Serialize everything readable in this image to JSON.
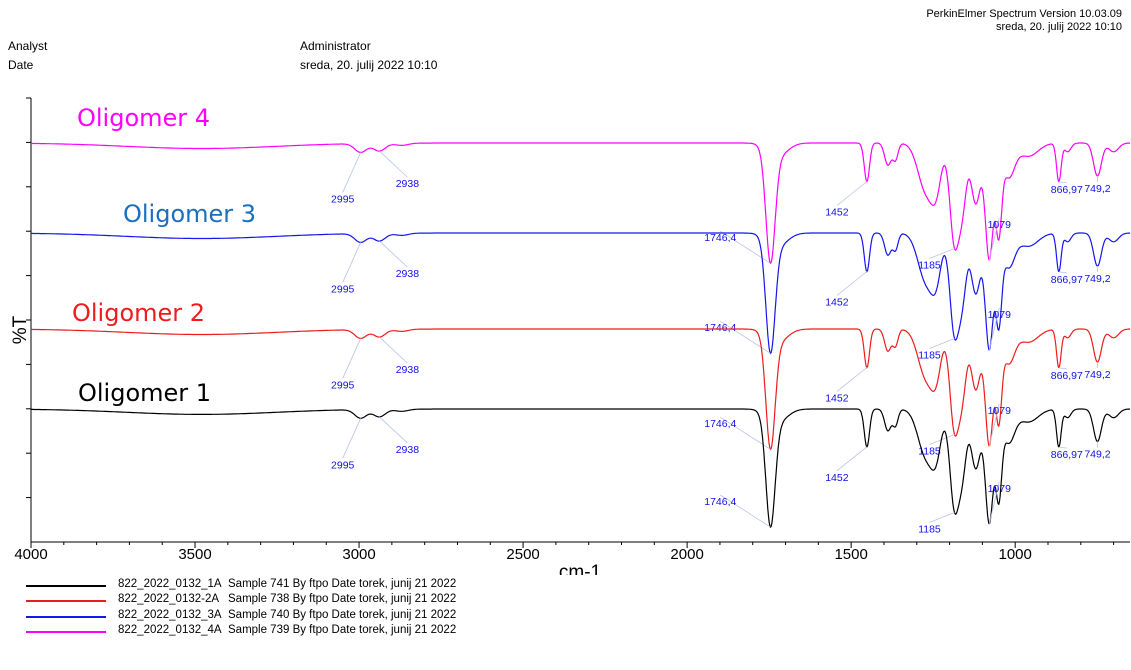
{
  "header": {
    "analyst_label": "Analyst",
    "analyst_value": "Administrator",
    "date_label": "Date",
    "date_value": "sreda, 20. julij 2022 10:10",
    "software": "PerkinElmer Spectrum Version 10.03.09",
    "software_date": "sreda, 20. julij 2022 10:10"
  },
  "chart_data": {
    "type": "line",
    "xlabel": "cm-1",
    "ylabel": "%T",
    "xlim": [
      4000,
      650
    ],
    "x_reversed": true,
    "x_ticks": [
      4000,
      3500,
      3000,
      2500,
      2000,
      1500,
      1000
    ],
    "grid": false,
    "series": [
      {
        "name": "Oligomer 4",
        "color": "#ff00ff",
        "label_color": "#ff00ff",
        "peaks": [
          {
            "x": 2995,
            "label": "2995"
          },
          {
            "x": 2938,
            "label": "2938"
          },
          {
            "x": 1746.4,
            "label": "1746,4"
          },
          {
            "x": 1452,
            "label": "1452"
          },
          {
            "x": 1185,
            "label": "1185"
          },
          {
            "x": 1079,
            "label": "1079"
          },
          {
            "x": 866.97,
            "label": "866,97"
          },
          {
            "x": 749.2,
            "label": "749,2"
          }
        ]
      },
      {
        "name": "Oligomer 3",
        "color": "#1515ee",
        "label_color": "#1a6fbf",
        "peaks": [
          {
            "x": 2995,
            "label": "2995"
          },
          {
            "x": 2938,
            "label": "2938"
          },
          {
            "x": 1746.4,
            "label": "1746,4"
          },
          {
            "x": 1452,
            "label": "1452"
          },
          {
            "x": 1185,
            "label": "1185"
          },
          {
            "x": 1079,
            "label": "1079"
          },
          {
            "x": 866.97,
            "label": "866,97"
          },
          {
            "x": 749.2,
            "label": "749,2"
          }
        ]
      },
      {
        "name": "Oligomer 2",
        "color": "#ee1c1c",
        "label_color": "#ee1c1c",
        "peaks": [
          {
            "x": 2995,
            "label": "2995"
          },
          {
            "x": 2938,
            "label": "2938"
          },
          {
            "x": 1746.4,
            "label": "1746,4"
          },
          {
            "x": 1452,
            "label": "1452"
          },
          {
            "x": 1185,
            "label": "1185"
          },
          {
            "x": 1079,
            "label": "1079"
          },
          {
            "x": 866.97,
            "label": "866,97"
          },
          {
            "x": 749.2,
            "label": "749,2"
          }
        ]
      },
      {
        "name": "Oligomer 1",
        "color": "#000000",
        "label_color": "#000000",
        "peaks": [
          {
            "x": 2995,
            "label": "2995"
          },
          {
            "x": 2938,
            "label": "2938"
          },
          {
            "x": 1746.4,
            "label": "1746,4"
          },
          {
            "x": 1452,
            "label": "1452"
          },
          {
            "x": 1185,
            "label": "1185"
          },
          {
            "x": 1079,
            "label": "1079"
          },
          {
            "x": 866.97,
            "label": "866,97"
          },
          {
            "x": 749.2,
            "label": "749,2"
          }
        ]
      }
    ],
    "peak_label_color": "#1010ee"
  },
  "legend": [
    {
      "id": "822_2022_0132_1A",
      "desc": "Sample 741 By ftpo Date torek, junij 21 2022",
      "color": "#000000"
    },
    {
      "id": "822_2022_0132-2A",
      "desc": "Sample 738 By ftpo Date torek, junij 21 2022",
      "color": "#ee1c1c"
    },
    {
      "id": "822_2022_0132_3A",
      "desc": "Sample 740 By ftpo Date torek, junij 21 2022",
      "color": "#1515ee"
    },
    {
      "id": "822_2022_0132_4A",
      "desc": "Sample 739 By ftpo Date torek, junij 21 2022",
      "color": "#ff00ff"
    }
  ]
}
